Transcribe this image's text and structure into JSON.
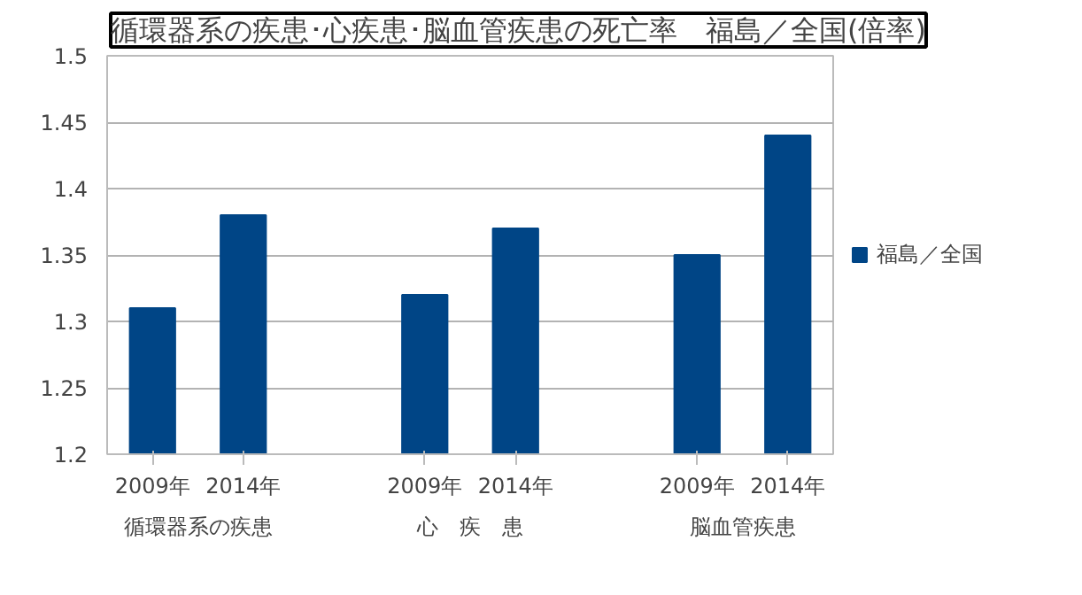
{
  "chart_data": {
    "type": "bar",
    "title": "循環器系の疾患･心疾患･脳血管疾患の死亡率　福島／全国(倍率)",
    "categories": [
      "2009年",
      "2014年",
      null,
      "2009年",
      "2014年",
      null,
      "2009年",
      "2014年"
    ],
    "series": [
      {
        "name": "福島／全国",
        "color": "#004586",
        "values": [
          1.31,
          1.38,
          null,
          1.32,
          1.37,
          null,
          1.35,
          1.44
        ]
      }
    ],
    "annotations": [
      "循環器系の疾患",
      "心　疾　患",
      "脳血管疾患"
    ],
    "ylim": [
      1.2,
      1.5
    ],
    "yticks": [
      1.2,
      1.25,
      1.3,
      1.35,
      1.4,
      1.45,
      1.5
    ],
    "grid": "y",
    "legend": "right"
  }
}
